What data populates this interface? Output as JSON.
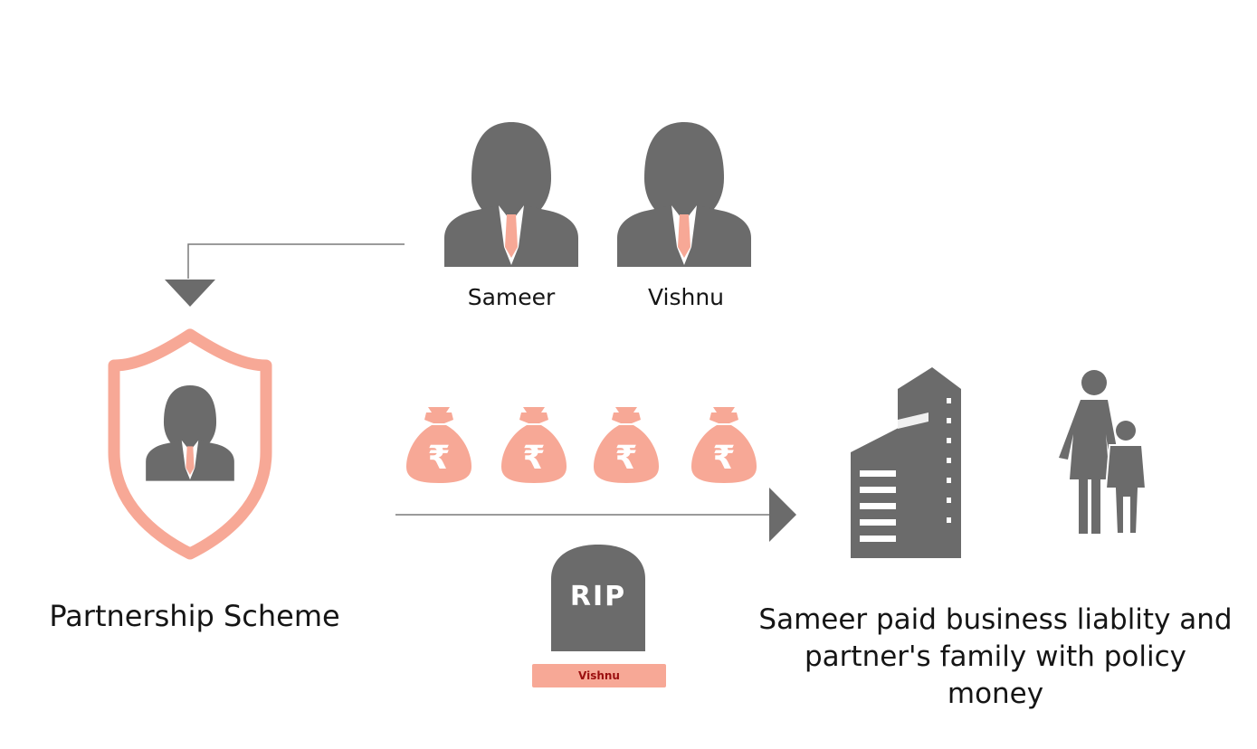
{
  "people": [
    {
      "name": "Sameer"
    },
    {
      "name": "Vishnu"
    }
  ],
  "scheme": {
    "label": "Partnership Scheme"
  },
  "money": {
    "currency_symbol": "₹"
  },
  "tombstone": {
    "text": "RIP",
    "name": "Vishnu"
  },
  "outcome": {
    "text": "Sameer paid business liablity and partner's family with policy money"
  },
  "colors": {
    "gray": "#6b6b6b",
    "accent": "#f7a896",
    "shield_stroke": "#f7a896",
    "tie": "#f7a896"
  },
  "icons": [
    "person-icon",
    "shield-icon",
    "money-bag-icon",
    "tombstone-icon",
    "building-icon",
    "family-icon",
    "arrow-icon"
  ]
}
